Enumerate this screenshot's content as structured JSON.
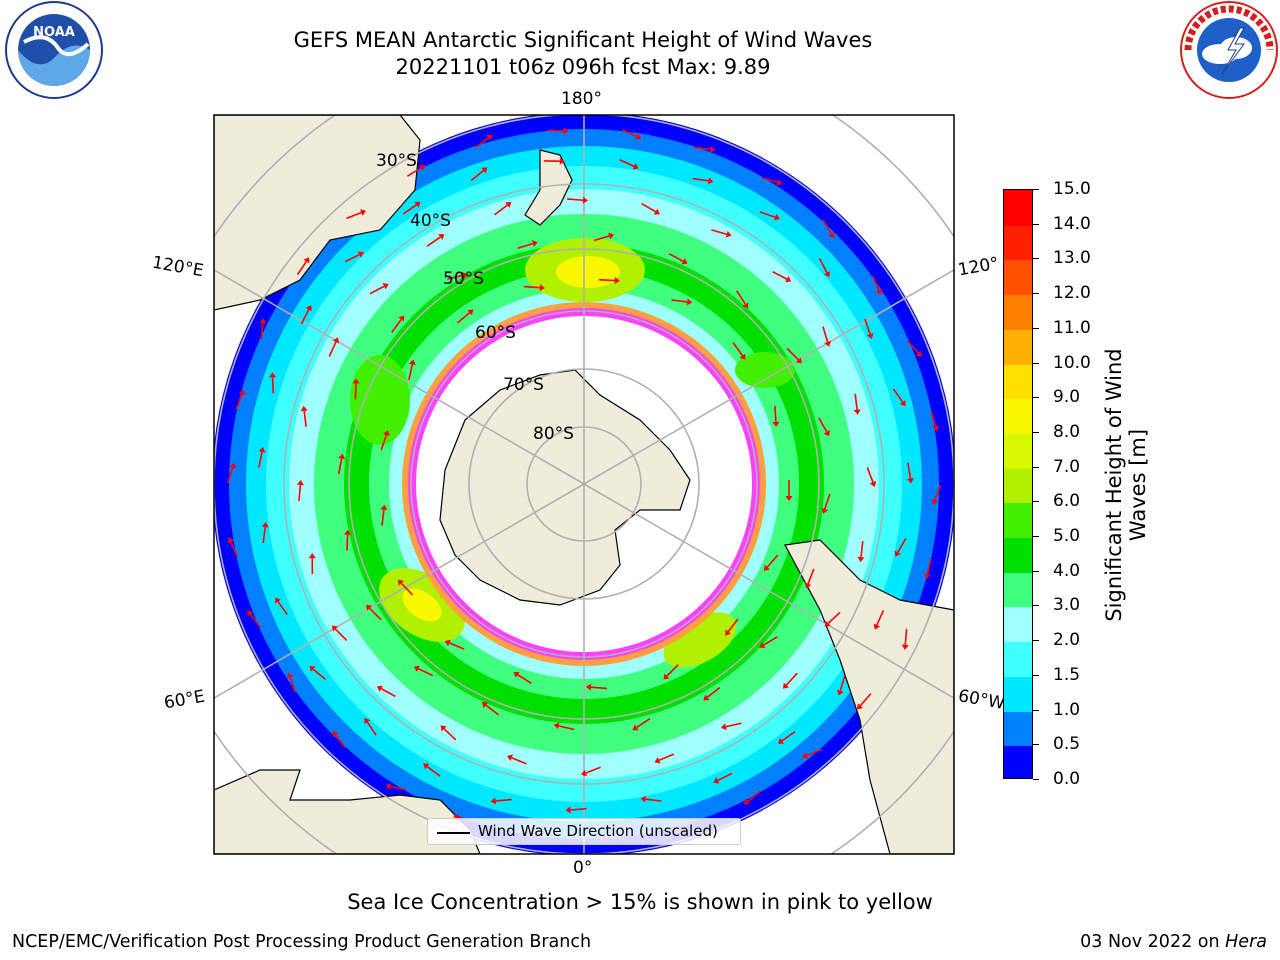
{
  "header": {
    "title": "GEFS MEAN Antarctic Significant Height of Wind Waves",
    "subtitle": "20221101 t06z 096h fcst   Max: 9.89"
  },
  "logos": {
    "left": "NOAA",
    "right": "NATIONAL WEATHER SERVICE"
  },
  "map": {
    "projection": "south-polar-stereographic",
    "lon_labels": [
      "180°",
      "120°E",
      "120°",
      "60°E",
      "60°W",
      "0°"
    ],
    "lat_labels": [
      "30°S",
      "40°S",
      "50°S",
      "60°S",
      "70°S",
      "80°S"
    ],
    "land_color": "#efecdc",
    "ice_colors": [
      "#ff40ff",
      "#ff80c0",
      "#ffa040",
      "#ffd040"
    ],
    "arrow_color": "#ff0000"
  },
  "legend": {
    "label": "Wind Wave Direction (unscaled)"
  },
  "colorbar": {
    "label": "Significant Height of Wind Waves [m]",
    "ticks": [
      "0.0",
      "0.5",
      "1.0",
      "1.5",
      "2.0",
      "3.0",
      "4.0",
      "5.0",
      "6.0",
      "7.0",
      "8.0",
      "9.0",
      "10.0",
      "11.0",
      "12.0",
      "13.0",
      "14.0",
      "15.0"
    ],
    "colors": [
      "#0000ff",
      "#0080ff",
      "#00e8ff",
      "#40ffff",
      "#a0ffff",
      "#40ff80",
      "#00e000",
      "#40f000",
      "#b0f000",
      "#d8f800",
      "#f8f800",
      "#ffe000",
      "#ffb000",
      "#ff8000",
      "#ff5000",
      "#ff2000",
      "#ff0000"
    ]
  },
  "footer": {
    "note": "Sea Ice Concentration > 15% is shown in pink to yellow",
    "credit": "NCEP/EMC/Verification Post Processing Product Generation Branch",
    "date": "03 Nov 2022 on ",
    "system": "Hera"
  }
}
